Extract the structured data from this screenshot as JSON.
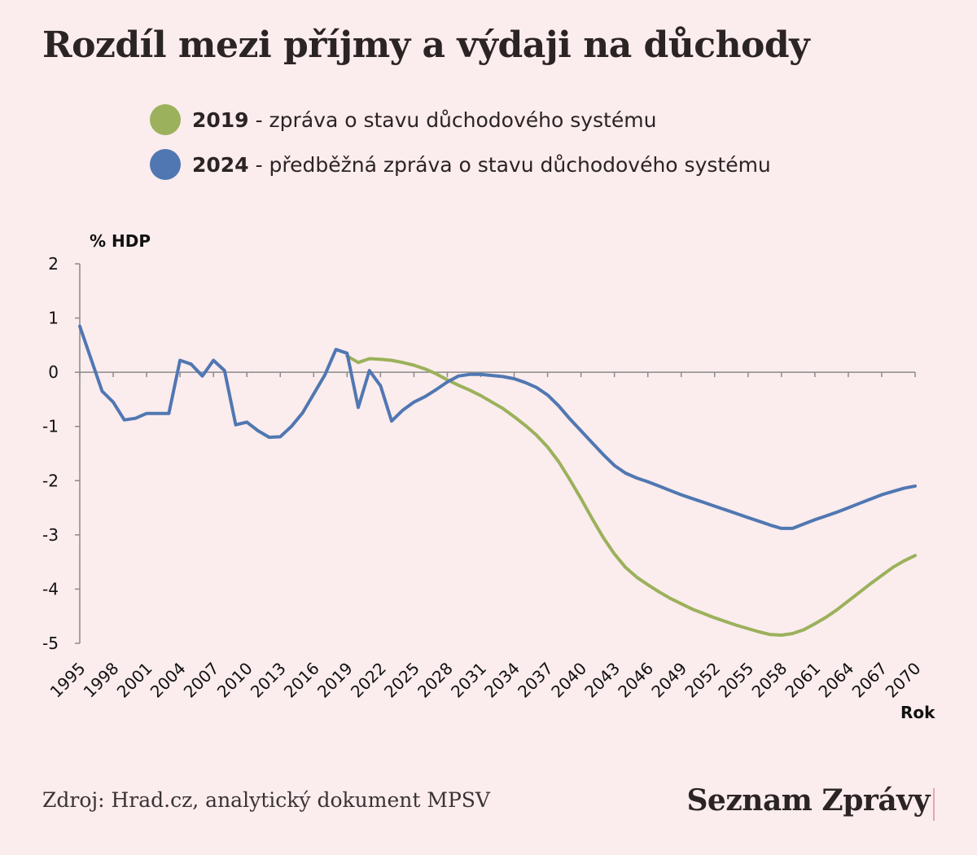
{
  "title": "Rozdíl mezi příjmy a výdaji na důchody",
  "legend": [
    {
      "year": "2019",
      "text": "- zpráva o stavu důchodového systému",
      "color": "#9bb15b"
    },
    {
      "year": "2024",
      "text": "- předběžná zpráva o stavu důchodového systému",
      "color": "#5077b2"
    }
  ],
  "source": "Zdroj: Hrad.cz, analytický dokument MPSV",
  "brand": "Seznam Zprávy",
  "chart_data": {
    "type": "line",
    "ylabel": "% HDP",
    "xlabel": "Rok",
    "ylim": [
      -5,
      2
    ],
    "xlim": [
      1995,
      2070
    ],
    "yticks": [
      2,
      1,
      0,
      -1,
      -2,
      -3,
      -4,
      -5
    ],
    "xticks": [
      "1995",
      "1998",
      "2001",
      "2004",
      "2007",
      "2010",
      "2013",
      "2016",
      "2019",
      "2022",
      "2025",
      "2028",
      "2031",
      "2034",
      "2037",
      "2040",
      "2043",
      "2046",
      "2049",
      "2052",
      "2055",
      "2058",
      "2061",
      "2064",
      "2067",
      "2070"
    ],
    "grid": false,
    "series": [
      {
        "name": "2024",
        "color": "#5077b2",
        "x": [
          1995,
          1996,
          1997,
          1998,
          1999,
          2000,
          2001,
          2002,
          2003,
          2004,
          2005,
          2006,
          2007,
          2008,
          2009,
          2010,
          2011,
          2012,
          2013,
          2014,
          2015,
          2016,
          2017,
          2018,
          2019,
          2020,
          2021,
          2022,
          2023,
          2024,
          2025,
          2026,
          2027,
          2028,
          2029,
          2030,
          2031,
          2032,
          2033,
          2034,
          2035,
          2036,
          2037,
          2038,
          2039,
          2040,
          2041,
          2042,
          2043,
          2044,
          2045,
          2046,
          2047,
          2048,
          2049,
          2050,
          2051,
          2052,
          2053,
          2054,
          2055,
          2056,
          2057,
          2058,
          2059,
          2060,
          2061,
          2062,
          2063,
          2064,
          2065,
          2066,
          2067,
          2068,
          2069,
          2070
        ],
        "values": [
          0.85,
          0.25,
          -0.35,
          -0.55,
          -0.88,
          -0.85,
          -0.76,
          -0.76,
          -0.76,
          0.22,
          0.15,
          -0.07,
          0.22,
          0.03,
          -0.97,
          -0.92,
          -1.08,
          -1.2,
          -1.19,
          -1.0,
          -0.75,
          -0.4,
          -0.05,
          0.42,
          0.35,
          -0.65,
          0.03,
          -0.25,
          -0.9,
          -0.7,
          -0.55,
          -0.45,
          -0.32,
          -0.18,
          -0.07,
          -0.04,
          -0.04,
          -0.06,
          -0.08,
          -0.12,
          -0.19,
          -0.28,
          -0.42,
          -0.62,
          -0.86,
          -1.08,
          -1.3,
          -1.52,
          -1.72,
          -1.86,
          -1.95,
          -2.02,
          -2.1,
          -2.18,
          -2.26,
          -2.33,
          -2.4,
          -2.47,
          -2.54,
          -2.61,
          -2.68,
          -2.75,
          -2.82,
          -2.88,
          -2.88,
          -2.8,
          -2.72,
          -2.65,
          -2.58,
          -2.5,
          -2.42,
          -2.34,
          -2.26,
          -2.2,
          -2.14,
          -2.1
        ]
      },
      {
        "name": "2019",
        "color": "#9bb15b",
        "x": [
          2019,
          2020,
          2021,
          2022,
          2023,
          2024,
          2025,
          2026,
          2027,
          2028,
          2029,
          2030,
          2031,
          2032,
          2033,
          2034,
          2035,
          2036,
          2037,
          2038,
          2039,
          2040,
          2041,
          2042,
          2043,
          2044,
          2045,
          2046,
          2047,
          2048,
          2049,
          2050,
          2051,
          2052,
          2053,
          2054,
          2055,
          2056,
          2057,
          2058,
          2059,
          2060,
          2061,
          2062,
          2063,
          2064,
          2065,
          2066,
          2067,
          2068,
          2069,
          2070
        ],
        "values": [
          0.3,
          0.18,
          0.25,
          0.24,
          0.22,
          0.18,
          0.13,
          0.06,
          -0.03,
          -0.14,
          -0.24,
          -0.33,
          -0.43,
          -0.55,
          -0.67,
          -0.82,
          -0.98,
          -1.16,
          -1.38,
          -1.65,
          -1.98,
          -2.33,
          -2.7,
          -3.05,
          -3.35,
          -3.6,
          -3.78,
          -3.92,
          -4.05,
          -4.17,
          -4.27,
          -4.37,
          -4.45,
          -4.53,
          -4.6,
          -4.67,
          -4.73,
          -4.79,
          -4.84,
          -4.85,
          -4.82,
          -4.75,
          -4.64,
          -4.52,
          -4.38,
          -4.22,
          -4.06,
          -3.9,
          -3.75,
          -3.6,
          -3.48,
          -3.38
        ]
      }
    ]
  }
}
